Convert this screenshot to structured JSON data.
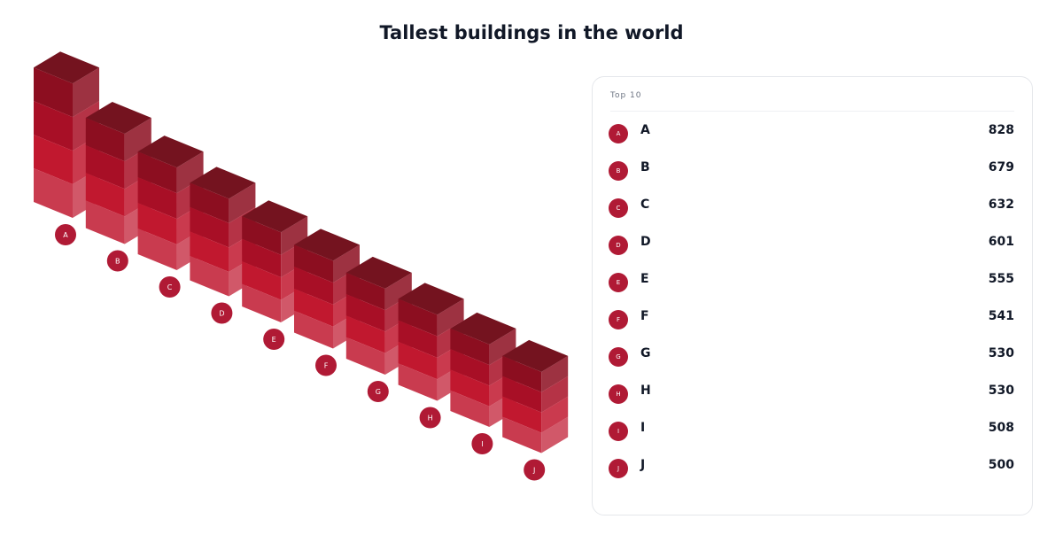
{
  "title": "Tallest buildings in the world",
  "panel_header": "Top 10",
  "footer": "",
  "colors": {
    "top": "#74131f",
    "band1": "#8c0e20",
    "band2": "#a80f26",
    "band3": "#c1182f",
    "band4": "#c93b4f",
    "badge": "#b01a35"
  },
  "chart_data": {
    "type": "bar",
    "categories": [
      "A",
      "B",
      "C",
      "D",
      "E",
      "F",
      "G",
      "H",
      "I",
      "J"
    ],
    "values": [
      828,
      679,
      632,
      601,
      555,
      541,
      530,
      530,
      508,
      500
    ],
    "regions": [
      "",
      "",
      "",
      "",
      "",
      "",
      "",
      "",
      "",
      ""
    ],
    "value_labels": [
      "828",
      "679",
      "632",
      "601",
      "555",
      "541",
      "530",
      "530",
      "508",
      "500"
    ],
    "xlabel": "",
    "ylabel": "",
    "ylim": [
      0,
      900
    ],
    "legend": "right panel"
  }
}
